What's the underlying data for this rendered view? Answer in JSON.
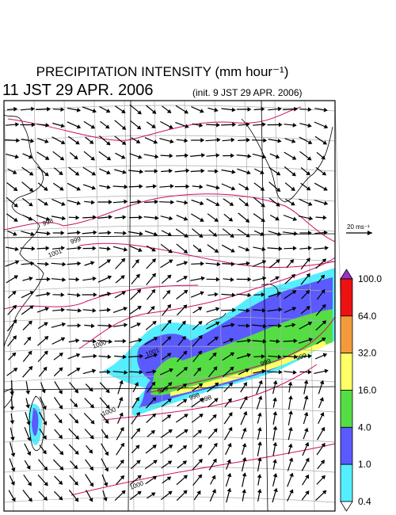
{
  "header": {
    "title": "PRECIPITATION INTENSITY (mm hour⁻¹)",
    "valid_time": "11 JST 29 APR. 2006",
    "init_time": "(init. 9 JST 29 APR. 2006)"
  },
  "map": {
    "contour_labels": [
      "998",
      "999",
      "1000",
      "1001",
      "1001",
      "999",
      "998",
      "999",
      "998",
      "999",
      "1000",
      "1000"
    ]
  },
  "wind_scale": {
    "label": "20 ms⁻¹"
  },
  "colorbar": {
    "levels": [
      "100.0",
      "64.0",
      "32.0",
      "16.0",
      "4.0",
      "1.0",
      "0.4"
    ],
    "colors": [
      "#9933cc",
      "#ee1111",
      "#f39b3c",
      "#ffff66",
      "#55dd44",
      "#5a5aff",
      "#55eeff",
      "#ffffff"
    ]
  }
}
